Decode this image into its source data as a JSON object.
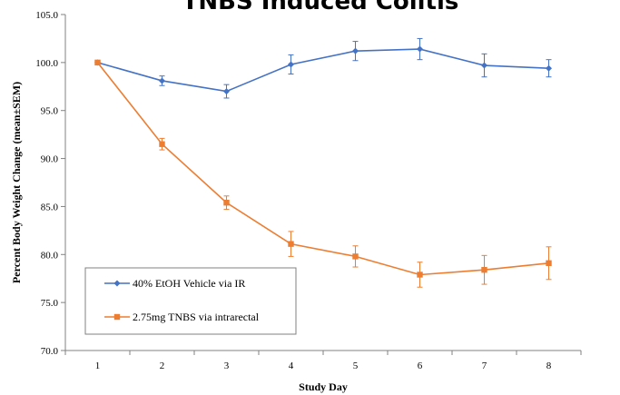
{
  "chart_data": {
    "type": "line",
    "title": "TNBS Induced Colitis",
    "xlabel": "Study Day",
    "ylabel": "Percent Body Weight Change (mean±SEM)",
    "ylim": [
      70,
      105
    ],
    "yticks": [
      "70.0",
      "75.0",
      "80.0",
      "85.0",
      "90.0",
      "95.0",
      "100.0",
      "105.0"
    ],
    "x": [
      1,
      2,
      3,
      4,
      5,
      6,
      7,
      8
    ],
    "grid": false,
    "legend_position": "bottom-left",
    "series": [
      {
        "name": "40% EtOH Vehicle via IR",
        "color": "#4472C4",
        "marker": "diamond",
        "values": [
          100.0,
          98.1,
          97.0,
          99.8,
          101.2,
          101.4,
          99.7,
          99.4
        ],
        "errors": [
          0.0,
          0.5,
          0.7,
          1.0,
          1.0,
          1.1,
          1.2,
          0.9
        ]
      },
      {
        "name": "2.75mg TNBS via intrarectal",
        "color": "#ED7D31",
        "marker": "square",
        "values": [
          100.0,
          91.5,
          85.4,
          81.1,
          79.8,
          77.9,
          78.4,
          79.1
        ],
        "errors": [
          0.0,
          0.6,
          0.7,
          1.3,
          1.1,
          1.3,
          1.5,
          1.7
        ]
      }
    ]
  }
}
